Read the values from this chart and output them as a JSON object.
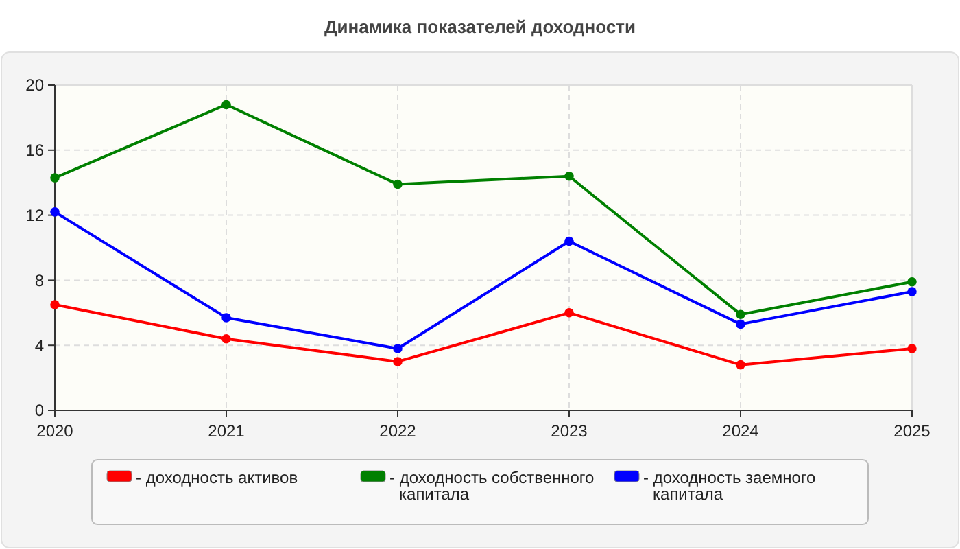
{
  "chart_data": {
    "type": "line",
    "title": "Динамика показателей доходности",
    "categories": [
      "2020",
      "2021",
      "2022",
      "2023",
      "2024",
      "2025"
    ],
    "ylim": [
      0,
      20
    ],
    "yticks": [
      0,
      4,
      8,
      12,
      16,
      20
    ],
    "grid": true,
    "legend": "bottom",
    "marker": "circle",
    "series": [
      {
        "name": "- доходность активов",
        "color": "#ff0000",
        "values": [
          6.5,
          4.4,
          3.0,
          6.0,
          2.8,
          3.8
        ]
      },
      {
        "name": "- доходность собственного капитала",
        "color": "#008000",
        "values": [
          14.3,
          18.8,
          13.9,
          14.4,
          5.9,
          7.9
        ]
      },
      {
        "name": "- доходность заемного капитала",
        "color": "#0000ff",
        "values": [
          12.2,
          5.7,
          3.8,
          10.4,
          5.3,
          7.3
        ]
      }
    ]
  }
}
